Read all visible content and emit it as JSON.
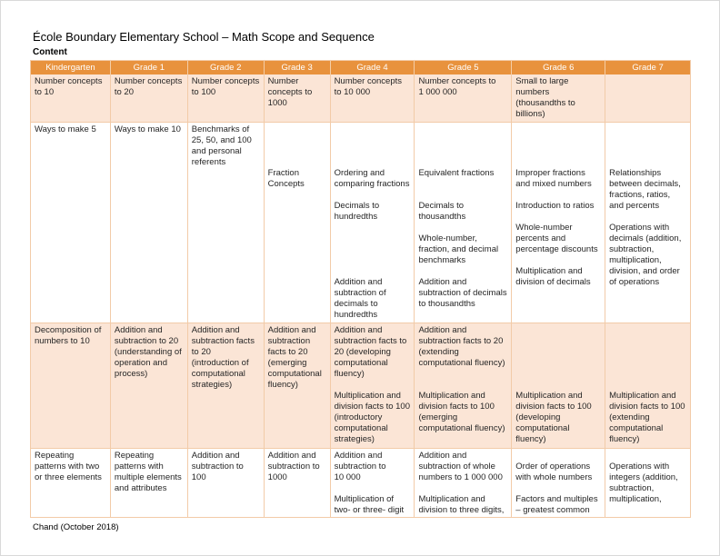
{
  "page": {
    "title": "École Boundary Elementary School – Math Scope and Sequence",
    "section_label": "Content",
    "footer": "Chand (October 2018)"
  },
  "colors": {
    "header_bg": "#E8923D",
    "header_text": "#FFFFFF",
    "row_shaded_bg": "#FBE5D6",
    "row_plain_bg": "#FFFFFF",
    "border": "#F2CBA8",
    "text": "#262626"
  },
  "table": {
    "columns": [
      "Kindergarten",
      "Grade 1",
      "Grade 2",
      "Grade 3",
      "Grade 4",
      "Grade 5",
      "Grade 6",
      "Grade 7"
    ],
    "rows": [
      {
        "cells": [
          [
            {
              "t": "Number concepts to 10"
            }
          ],
          [
            {
              "t": "Number concepts to 20"
            }
          ],
          [
            {
              "t": "Number concepts to 100"
            }
          ],
          [
            {
              "t": "Number concepts to 1000"
            }
          ],
          [
            {
              "t": "Number concepts to 10 000"
            }
          ],
          [
            {
              "t": "Number concepts to 1 000 000"
            }
          ],
          [
            {
              "t": "Small to large numbers (thousandths to billions)"
            }
          ],
          []
        ]
      },
      {
        "cells": [
          [
            {
              "t": "Ways to make 5"
            }
          ],
          [
            {
              "t": "Ways to make 10"
            }
          ],
          [
            {
              "t": "Benchmarks of 25, 50, and 100 and personal referents"
            }
          ],
          [
            {
              "t": "Fraction Concepts",
              "gap": 4
            }
          ],
          [
            {
              "t": "Ordering and comparing fractions",
              "gap": 4
            },
            {
              "t": "Decimals to hundredths",
              "gap": 1
            },
            {
              "t": "Addition and subtraction of decimals to hundredths",
              "gap": 5
            }
          ],
          [
            {
              "t": "Equivalent fractions",
              "gap": 4
            },
            {
              "t": "Decimals to thousandths",
              "gap": 2
            },
            {
              "t": "Whole-number, fraction, and decimal benchmarks",
              "gap": 1
            },
            {
              "t": "Addition and subtraction of decimals to thousandths",
              "gap": 1
            }
          ],
          [
            {
              "t": "Improper fractions and mixed numbers",
              "gap": 4
            },
            {
              "t": "Introduction to ratios",
              "gap": 1
            },
            {
              "t": "Whole-number percents and percentage discounts",
              "gap": 1
            },
            {
              "t": "Multiplication and division of decimals",
              "gap": 1
            }
          ],
          [
            {
              "t": "Relationships between decimals, fractions, ratios, and percents",
              "gap": 4
            },
            {
              "t": "Operations with decimals (addition, subtraction, multiplication, division, and order of operations",
              "gap": 1
            }
          ]
        ]
      },
      {
        "cells": [
          [
            {
              "t": "Decomposition of numbers to 10"
            }
          ],
          [
            {
              "t": "Addition and subtraction to 20 (understanding of operation and process)"
            }
          ],
          [
            {
              "t": "Addition and subtraction facts to 20 (introduction of computational strategies)"
            }
          ],
          [
            {
              "t": "Addition and subtraction facts to 20 (emerging computational fluency)"
            }
          ],
          [
            {
              "t": "Addition and subtraction facts to 20 (developing computational fluency)"
            },
            {
              "t": "Multiplication and division facts to 100 (introductory computational strategies)",
              "gap": 1
            }
          ],
          [
            {
              "t": "Addition and subtraction facts to 20 (extending computational fluency)"
            },
            {
              "t": "Multiplication and division facts to 100 (emerging computational fluency)",
              "gap": 2
            }
          ],
          [
            {
              "t": "Multiplication and division facts to 100 (developing computational fluency)",
              "gap": 6
            }
          ],
          [
            {
              "t": "Multiplication and division facts to 100 (extending computational fluency)",
              "gap": 6
            }
          ]
        ]
      },
      {
        "cells": [
          [
            {
              "t": "Repeating patterns with two or three elements"
            }
          ],
          [
            {
              "t": "Repeating patterns with multiple elements and attributes"
            }
          ],
          [
            {
              "t": "Addition and subtraction to 100"
            }
          ],
          [
            {
              "t": "Addition and subtraction to 1000"
            }
          ],
          [
            {
              "t": "Addition and subtraction to 10 000"
            },
            {
              "t": "Multiplication of two- or three- digit",
              "gap": 1
            }
          ],
          [
            {
              "t": "Addition and subtraction of whole numbers to 1 000 000"
            },
            {
              "t": "Multiplication and division to three digits,",
              "gap": 1
            }
          ],
          [
            {
              "t": "Order of operations with whole numbers",
              "gap": 1
            },
            {
              "t": "Factors and multiples – greatest common",
              "gap": 1
            }
          ],
          [
            {
              "t": "Operations with integers (addition, subtraction, multiplication,",
              "gap": 1
            }
          ]
        ]
      }
    ]
  }
}
